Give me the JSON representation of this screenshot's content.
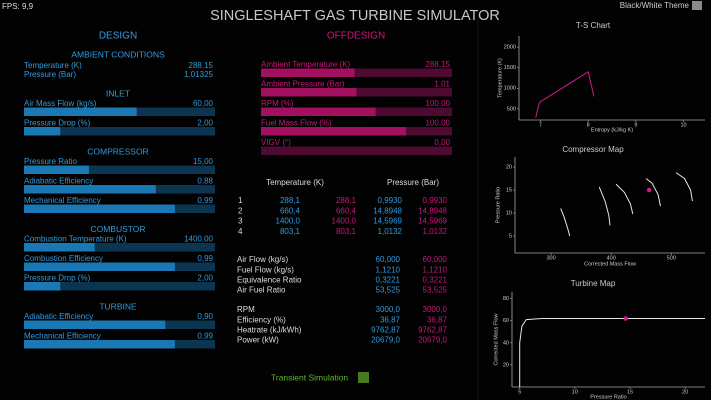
{
  "fps": "FPS: 9,9",
  "title": "SINGLESHAFT GAS TURBINE SIMULATOR",
  "theme_toggle": "Black/White Theme",
  "design": {
    "heading": "DESIGN",
    "sections": [
      {
        "heading": "AMBIENT CONDITIONS",
        "rows": [
          {
            "label": "Temperature  (K)",
            "value": "288.15"
          },
          {
            "label": "Pressure  (Bar)",
            "value": "1.01325"
          }
        ]
      },
      {
        "heading": "INLET",
        "rows": [
          {
            "label": "Air Mass Flow  (kg/s)",
            "value": "60,00",
            "slider": 0.59
          },
          {
            "label": "Pressure Drop  (%)",
            "value": "2,00",
            "slider": 0.19
          }
        ]
      },
      {
        "heading": "COMPRESSOR",
        "rows": [
          {
            "label": "Pressure Ratio",
            "value": "15,00",
            "slider": 0.34
          },
          {
            "label": "Adiabatic Efficiency",
            "value": "0,88",
            "slider": 0.69
          },
          {
            "label": "Mechanical Efficiency",
            "value": "0,99",
            "slider": 0.79
          }
        ]
      },
      {
        "heading": "COMBUSTOR",
        "rows": [
          {
            "label": "Combustion Temperature  (K)",
            "value": "1400,00",
            "slider": 0.37
          },
          {
            "label": "Combustion Efficiency",
            "value": "0,99",
            "slider": 0.79
          },
          {
            "label": "Pressure Drop  (%)",
            "value": "2,00",
            "slider": 0.19
          }
        ]
      },
      {
        "heading": "TURBINE",
        "rows": [
          {
            "label": "Adiabatic Efficiency",
            "value": "0,90",
            "slider": 0.74
          },
          {
            "label": "Mechanical Efficiency",
            "value": "0,99",
            "slider": 0.79
          }
        ]
      }
    ]
  },
  "offdesign": {
    "heading": "OFFDESIGN",
    "rows": [
      {
        "label": "Ambient Temperature  (K)",
        "value": "288,15",
        "slider": 0.49
      },
      {
        "label": "Ambient Pressure  (Bar)",
        "value": "1,01",
        "slider": 0.5
      },
      {
        "label": "RPM  (%)",
        "value": "100,00",
        "slider": 0.6
      },
      {
        "label": "Fuel Mass Flow  (%)",
        "value": "100,00",
        "slider": 0.76
      },
      {
        "label": "VIGV  (°)",
        "value": "0,00",
        "slider": 0
      }
    ]
  },
  "states": {
    "headers": [
      "Temperature (K)",
      "Pressure (Bar)"
    ],
    "rows": [
      [
        "1",
        "288,1",
        "288,1",
        "0,9930",
        "0,9930"
      ],
      [
        "2",
        "660,4",
        "660,4",
        "14,8948",
        "14,8948"
      ],
      [
        "3",
        "1400,0",
        "1400,0",
        "14,5969",
        "14,5969"
      ],
      [
        "4",
        "803,1",
        "803,1",
        "1,0132",
        "1,0132"
      ]
    ]
  },
  "performance": {
    "groups": [
      [
        [
          "Air Flow (kg/s)",
          "60,000",
          "60,000"
        ],
        [
          "Fuel Flow (kg/s)",
          "1,1210",
          "1,1210"
        ],
        [
          "Equivalence Ratio",
          "0,3221",
          "0,3221"
        ],
        [
          "Air Fuel Ratio",
          "53,525",
          "53,525"
        ]
      ],
      [
        [
          "RPM",
          "3000,0",
          "3000,0"
        ],
        [
          "Efficiency (%)",
          "36,87",
          "36,87"
        ],
        [
          "Heatrate (kJ/kWh)",
          "9762,87",
          "9762,87"
        ],
        [
          "Power (kW)",
          "20679,0",
          "20679,0"
        ]
      ]
    ]
  },
  "transient_button": "Transient Simulation",
  "charts": [
    {
      "type": "line",
      "title": "T-S Chart",
      "xlabel": "Entropy (kJ/kg K)",
      "ylabel": "Temperature (K)",
      "xlim": [
        6.55,
        10.45
      ],
      "ylim": [
        230,
        2270
      ],
      "xticks": [
        7,
        8,
        9,
        10
      ],
      "yticks": [
        500,
        1000,
        1500,
        2000
      ],
      "series": [
        {
          "style": "line",
          "color": "#d81b8c",
          "x": [
            6.9,
            6.98,
            8.0,
            8.12
          ],
          "values": [
            288.1,
            660.4,
            1400.0,
            803.1
          ]
        }
      ]
    },
    {
      "type": "line",
      "title": "Compressor Map",
      "xlabel": "Corrected Mass Flow",
      "ylabel": "Pressure Ratio",
      "xlim": [
        240,
        556
      ],
      "ylim": [
        1.3,
        22.2
      ],
      "xticks": [
        300,
        400,
        500
      ],
      "yticks": [
        5,
        10,
        15,
        20
      ],
      "series": [
        {
          "style": "line",
          "color": "#e8e8e8",
          "x": [
            316,
            322,
            328,
            331
          ],
          "values": [
            11,
            9,
            6.5,
            5
          ]
        },
        {
          "style": "line",
          "color": "#e8e8e8",
          "x": [
            380,
            390,
            396,
            398
          ],
          "values": [
            15.7,
            12.5,
            9.5,
            7.3
          ]
        },
        {
          "style": "line",
          "color": "#e8e8e8",
          "x": [
            408,
            422,
            432,
            436
          ],
          "values": [
            16.3,
            14.5,
            12,
            9.8
          ]
        },
        {
          "style": "line",
          "color": "#e8e8e8",
          "x": [
            458,
            468,
            478,
            482
          ],
          "values": [
            17.5,
            16.5,
            14,
            11.5
          ]
        },
        {
          "style": "line",
          "color": "#e8e8e8",
          "x": [
            508,
            522,
            532,
            535
          ],
          "values": [
            18.8,
            17.5,
            15,
            12.6
          ]
        },
        {
          "style": "point",
          "color": "#d81b8c",
          "x": [
            463
          ],
          "values": [
            15
          ]
        }
      ]
    },
    {
      "type": "line",
      "title": "Turbine Map",
      "xlabel": "Pressure Ratio",
      "ylabel": "Corrected Mass Flow",
      "xlim": [
        4.3,
        21.8
      ],
      "ylim": [
        0,
        86
      ],
      "xticks": [
        5,
        10,
        15,
        20
      ],
      "yticks": [
        20,
        40,
        60,
        80
      ],
      "series": [
        {
          "style": "line",
          "color": "#e8e8e8",
          "x": [
            5.0,
            5.0,
            5.2,
            5.6,
            7,
            21.8
          ],
          "values": [
            0,
            40,
            55,
            61,
            62,
            62
          ]
        },
        {
          "style": "point",
          "color": "#d81b8c",
          "x": [
            14.6
          ],
          "values": [
            62
          ]
        }
      ]
    }
  ]
}
